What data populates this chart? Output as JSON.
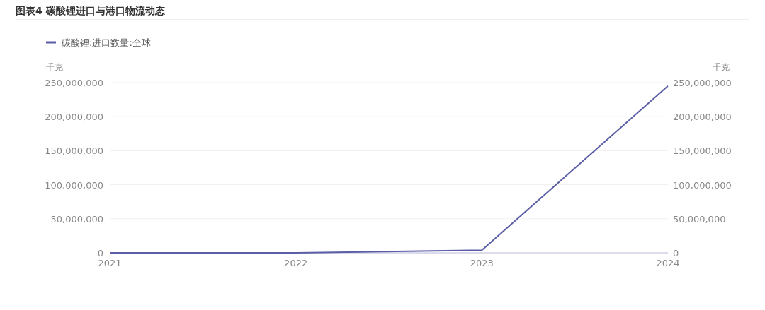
{
  "chart_data": {
    "type": "line",
    "title": "图表4  碳酸锂进口与港口物流动态",
    "ylabel": "千克",
    "y2label": "千克",
    "categories": [
      "2021",
      "2022",
      "2023",
      "2024"
    ],
    "series": [
      {
        "name": "碳酸锂:进口数量:全球",
        "color": "#5b5ea6",
        "values": [
          0,
          0,
          4000000,
          245000000
        ]
      }
    ],
    "ylim": [
      0,
      250000000
    ],
    "yticks": [
      {
        "value": 0,
        "label": "0"
      },
      {
        "value": 50000000,
        "label": "50,000,000"
      },
      {
        "value": 100000000,
        "label": "100,000,000"
      },
      {
        "value": 150000000,
        "label": "150,000,000"
      },
      {
        "value": 200000000,
        "label": "200,000,000"
      },
      {
        "value": 250000000,
        "label": "250,000,000"
      }
    ],
    "y2lim": [
      0,
      250000000
    ],
    "y2ticks": [
      {
        "value": 0,
        "label": "0"
      },
      {
        "value": 50000000,
        "label": "50,000,000"
      },
      {
        "value": 100000000,
        "label": "100,000,000"
      },
      {
        "value": 150000000,
        "label": "150,000,000"
      },
      {
        "value": 200000000,
        "label": "200,000,000"
      },
      {
        "value": 250000000,
        "label": "250,000,000"
      }
    ],
    "grid": "y",
    "legend": "top left",
    "marker": "none",
    "line_style": "solid"
  }
}
